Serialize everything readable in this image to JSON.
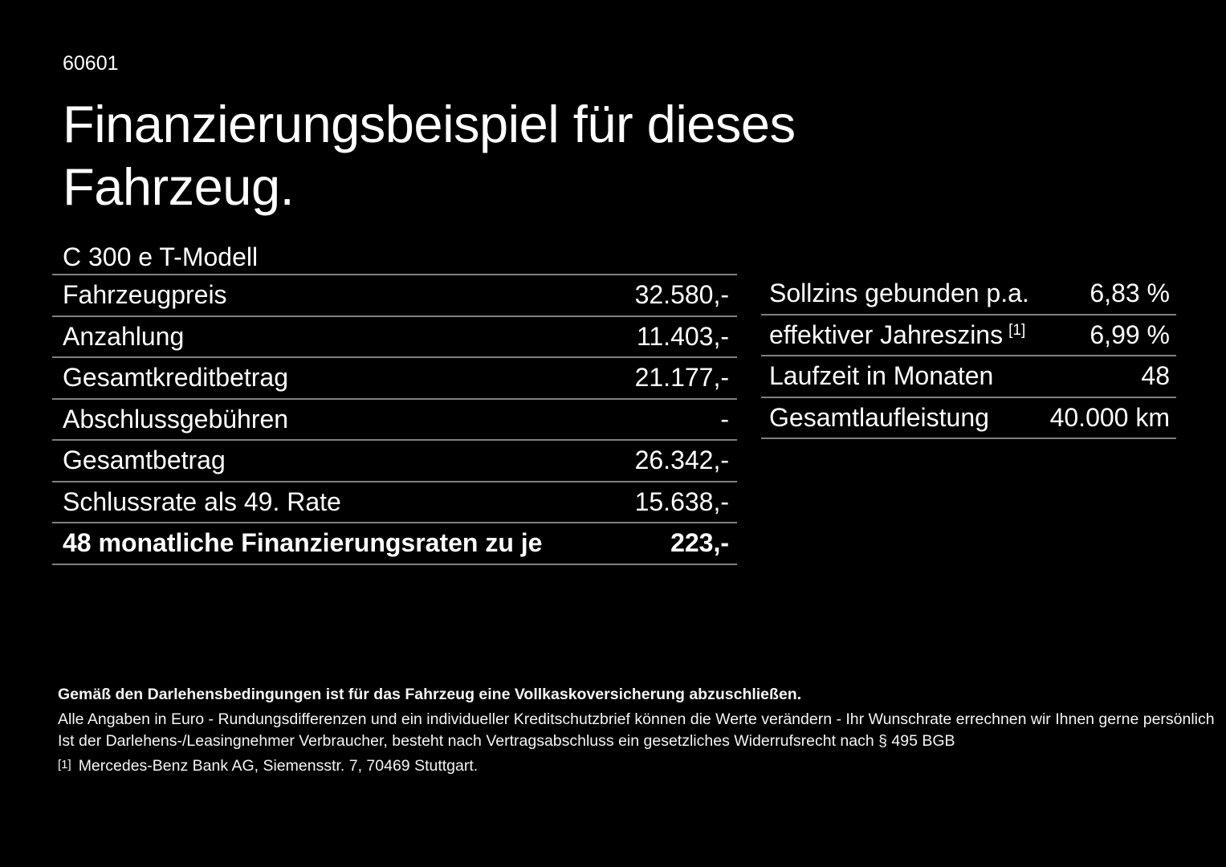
{
  "header": {
    "doc_number": "60601",
    "title": "Finanzierungsbeispiel für dieses\nFahrzeug.",
    "model": "C 300 e T-Modell"
  },
  "financing_table": {
    "rows": [
      {
        "label": "Fahrzeugpreis",
        "value": "32.580,-"
      },
      {
        "label": "Anzahlung",
        "value": "11.403,-"
      },
      {
        "label": "Gesamtkreditbetrag",
        "value": "21.177,-"
      },
      {
        "label": "Abschlussgebühren",
        "value": "-"
      },
      {
        "label": "Gesamtbetrag",
        "value": "26.342,-"
      },
      {
        "label": "Schlussrate als 49. Rate",
        "value": "15.638,-"
      },
      {
        "label": "48 monatliche Finanzierungsraten zu je",
        "value": "223,-"
      }
    ]
  },
  "conditions_table": {
    "rows": [
      {
        "label": "Sollzins gebunden p.a.",
        "sup": "",
        "value": "6,83 %"
      },
      {
        "label": "effektiver Jahreszins",
        "sup": "[1]",
        "value": "6,99 %"
      },
      {
        "label": "Laufzeit in Monaten",
        "sup": "",
        "value": "48"
      },
      {
        "label": "Gesamtlaufleistung",
        "sup": "",
        "value": "40.000 km"
      }
    ]
  },
  "footer": {
    "insurance_note": "Gemäß den Darlehensbedingungen ist für das Fahrzeug eine Vollkaskoversicherung abzuschließen.",
    "general_note": "Alle Angaben in Euro - Rundungsdifferenzen und ein individueller Kreditschutzbrief können die Werte verändern - Ihr Wunschrate errechnen wir Ihnen gerne persönlich",
    "withdrawal_note": "Ist der Darlehens-/Leasingnehmer Verbraucher, besteht nach Vertragsabschluss ein gesetzliches Widerrufsrecht nach § 495 BGB",
    "footnote_marker": "[1]",
    "footnote_text": "Mercedes-Benz Bank AG, Siemensstr. 7, 70469 Stuttgart."
  },
  "colors": {
    "background": "#000000",
    "text": "#ffffff",
    "divider": "#808080"
  }
}
